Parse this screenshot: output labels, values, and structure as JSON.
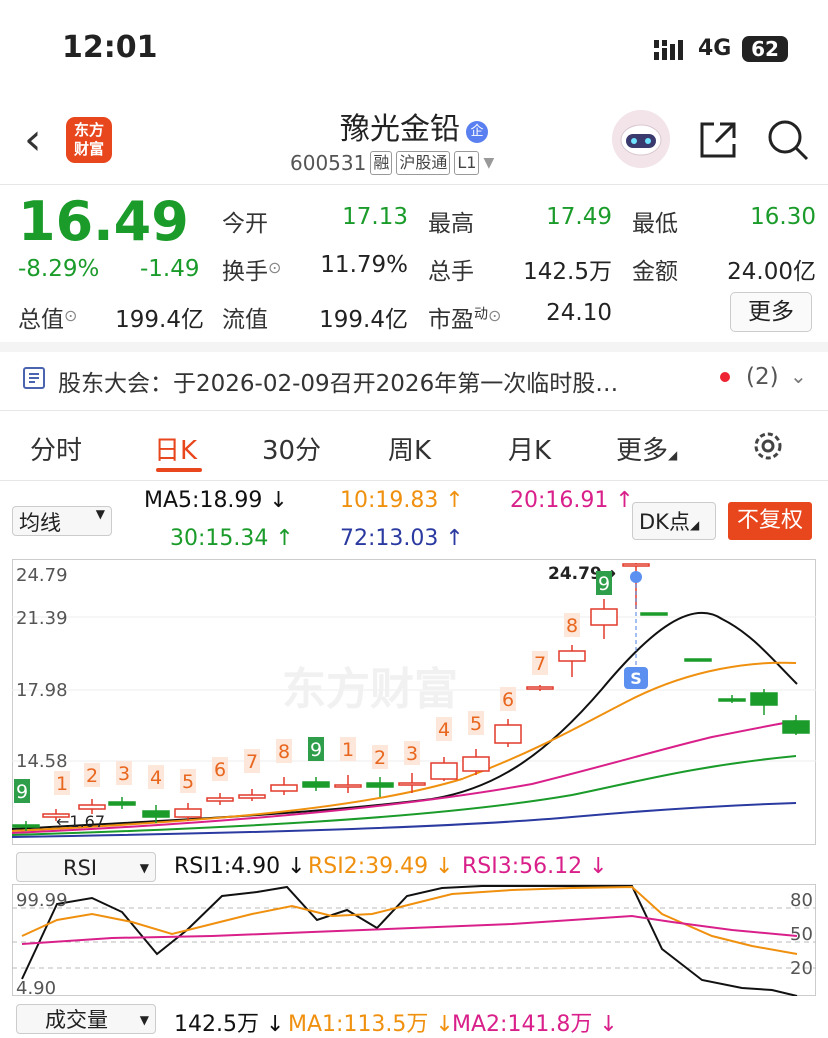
{
  "status_bar": {
    "time": "12:01",
    "network": "4G",
    "battery": "62"
  },
  "header": {
    "logo_line1": "东方",
    "logo_line2": "财富",
    "stock_name": "豫光金铅",
    "name_badge": "企",
    "code": "600531",
    "tags": [
      "融",
      "沪股通",
      "L1"
    ]
  },
  "quote": {
    "price": "16.49",
    "change_pct": "-8.29%",
    "change": "-1.49",
    "fields": {
      "open_label": "今开",
      "open": "17.13",
      "high_label": "最高",
      "high": "17.49",
      "low_label": "最低",
      "low": "16.30",
      "turnover_label": "换手",
      "turnover": "11.79%",
      "volume_label": "总手",
      "volume": "142.5万",
      "amount_label": "金额",
      "amount": "24.00亿",
      "mcap_label": "总值",
      "mcap": "199.4亿",
      "float_label": "流值",
      "float_cap": "199.4亿",
      "pe_label": "市盈",
      "pe_sup": "动",
      "pe": "24.10"
    },
    "more_label": "更多"
  },
  "notice": {
    "text": "股东大会：于2026-02-09召开2026年第一次临时股…",
    "count": "(2)"
  },
  "tabs": [
    "分时",
    "日K",
    "30分",
    "周K",
    "月K",
    "更多"
  ],
  "active_tab": "日K",
  "ma_row": {
    "selector": "均线",
    "ma5": "MA5:18.99",
    "ma10": "10:19.83",
    "ma20": "20:16.91",
    "ma30": "30:15.34",
    "ma72": "72:13.03",
    "dk_label": "DK点",
    "restore_label": "不复权"
  },
  "chart_axis": {
    "ticks": [
      "24.79",
      "21.39",
      "17.98",
      "14.58"
    ],
    "high_marker": "24.79",
    "low_marker": "1.67",
    "s_marker": "S",
    "watermark": "东方财富"
  },
  "kline_counts": [
    "9",
    "1",
    "2",
    "3",
    "4",
    "5",
    "6",
    "7",
    "8",
    "9",
    "1",
    "2",
    "3",
    "4",
    "5",
    "6",
    "7",
    "8",
    "9"
  ],
  "rsi_row": {
    "selector": "RSI",
    "rsi1": "RSI1:4.90",
    "rsi2": "RSI2:39.49",
    "rsi3": "RSI3:56.12"
  },
  "rsi_axis": {
    "top": "99.99",
    "bottom": "4.90",
    "r80": "80",
    "r50": "50",
    "r20": "20"
  },
  "vol_row": {
    "selector": "成交量",
    "vol": "142.5万",
    "ma1": "MA1:113.5万",
    "ma2": "MA2:141.8万"
  },
  "colors": {
    "up": "#e23a2a",
    "down": "#1a9b2a",
    "accent": "#e8461d",
    "ma5": "#111111",
    "ma10": "#f0900f",
    "ma20": "#d9208a",
    "ma30": "#1a9b2a",
    "ma72": "#2a3aa0"
  }
}
